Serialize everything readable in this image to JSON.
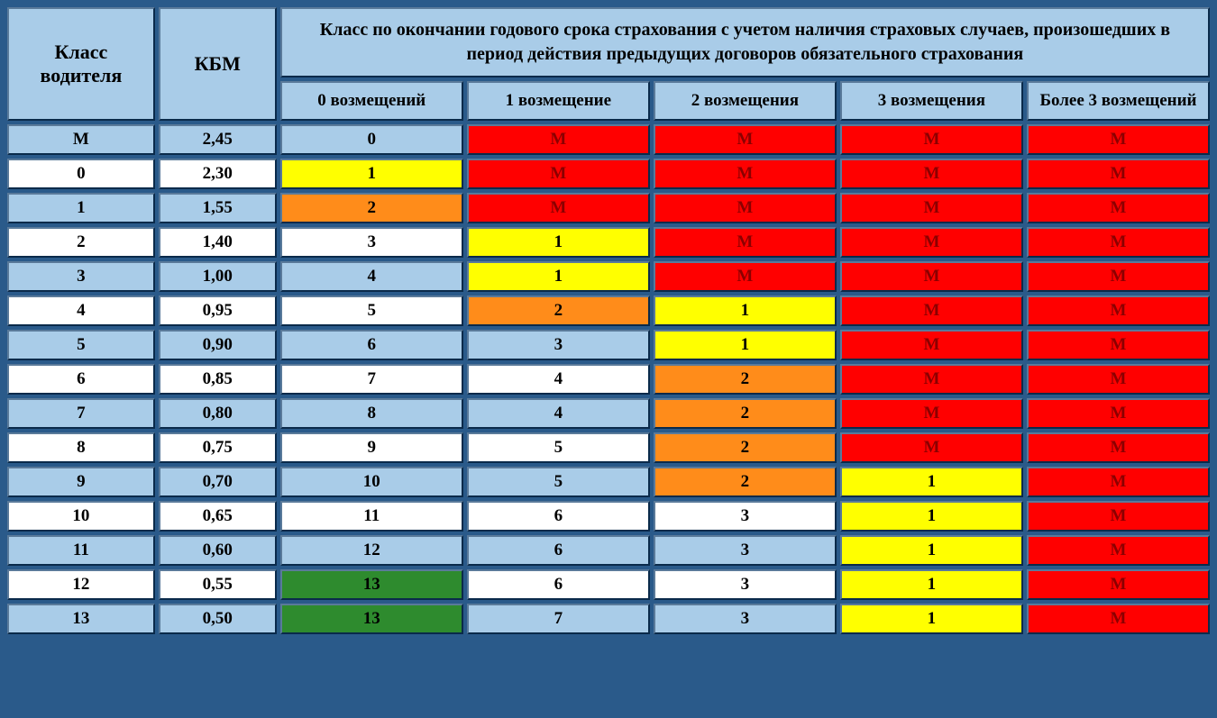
{
  "headers": {
    "driver_class": "Класс водителя",
    "kbm": "КБМ",
    "main": "Класс по окончании годового срока страхования с учетом наличия страховых случаев, произошедших в период действия предыдущих договоров обязательного страхования",
    "sub": [
      "0 возмещений",
      "1 возмещение",
      "2 возмещения",
      "3 возмещения",
      "Более 3 возмещений"
    ]
  },
  "colors": {
    "header_bg": "#a9cce8",
    "blue": "#a9cce8",
    "white": "#ffffff",
    "yellow": "#ffff00",
    "orange": "#ff8c1a",
    "red": "#ff0000",
    "green": "#2e8b2e",
    "red_text": "#8b0000",
    "black_text": "#000000"
  },
  "rows": [
    {
      "class": "М",
      "kbm": "2,45",
      "c0": {
        "v": "0",
        "bg": "blue"
      },
      "c1": {
        "v": "М",
        "bg": "red",
        "fg": "red_text"
      },
      "c2": {
        "v": "М",
        "bg": "red",
        "fg": "red_text"
      },
      "c3": {
        "v": "М",
        "bg": "red",
        "fg": "red_text"
      },
      "c4": {
        "v": "М",
        "bg": "red",
        "fg": "red_text"
      },
      "row_bg": "blue"
    },
    {
      "class": "0",
      "kbm": "2,30",
      "c0": {
        "v": "1",
        "bg": "yellow"
      },
      "c1": {
        "v": "М",
        "bg": "red",
        "fg": "red_text"
      },
      "c2": {
        "v": "М",
        "bg": "red",
        "fg": "red_text"
      },
      "c3": {
        "v": "М",
        "bg": "red",
        "fg": "red_text"
      },
      "c4": {
        "v": "М",
        "bg": "red",
        "fg": "red_text"
      },
      "row_bg": "white"
    },
    {
      "class": "1",
      "kbm": "1,55",
      "c0": {
        "v": "2",
        "bg": "orange"
      },
      "c1": {
        "v": "М",
        "bg": "red",
        "fg": "red_text"
      },
      "c2": {
        "v": "М",
        "bg": "red",
        "fg": "red_text"
      },
      "c3": {
        "v": "М",
        "bg": "red",
        "fg": "red_text"
      },
      "c4": {
        "v": "М",
        "bg": "red",
        "fg": "red_text"
      },
      "row_bg": "blue"
    },
    {
      "class": "2",
      "kbm": "1,40",
      "c0": {
        "v": "3",
        "bg": "white"
      },
      "c1": {
        "v": "1",
        "bg": "yellow"
      },
      "c2": {
        "v": "М",
        "bg": "red",
        "fg": "red_text"
      },
      "c3": {
        "v": "М",
        "bg": "red",
        "fg": "red_text"
      },
      "c4": {
        "v": "М",
        "bg": "red",
        "fg": "red_text"
      },
      "row_bg": "white"
    },
    {
      "class": "3",
      "kbm": "1,00",
      "c0": {
        "v": "4",
        "bg": "blue"
      },
      "c1": {
        "v": "1",
        "bg": "yellow"
      },
      "c2": {
        "v": "М",
        "bg": "red",
        "fg": "red_text"
      },
      "c3": {
        "v": "М",
        "bg": "red",
        "fg": "red_text"
      },
      "c4": {
        "v": "М",
        "bg": "red",
        "fg": "red_text"
      },
      "row_bg": "blue"
    },
    {
      "class": "4",
      "kbm": "0,95",
      "c0": {
        "v": "5",
        "bg": "white"
      },
      "c1": {
        "v": "2",
        "bg": "orange"
      },
      "c2": {
        "v": "1",
        "bg": "yellow"
      },
      "c3": {
        "v": "М",
        "bg": "red",
        "fg": "red_text"
      },
      "c4": {
        "v": "М",
        "bg": "red",
        "fg": "red_text"
      },
      "row_bg": "white"
    },
    {
      "class": "5",
      "kbm": "0,90",
      "c0": {
        "v": "6",
        "bg": "blue"
      },
      "c1": {
        "v": "3",
        "bg": "blue"
      },
      "c2": {
        "v": "1",
        "bg": "yellow"
      },
      "c3": {
        "v": "М",
        "bg": "red",
        "fg": "red_text"
      },
      "c4": {
        "v": "М",
        "bg": "red",
        "fg": "red_text"
      },
      "row_bg": "blue"
    },
    {
      "class": "6",
      "kbm": "0,85",
      "c0": {
        "v": "7",
        "bg": "white"
      },
      "c1": {
        "v": "4",
        "bg": "white"
      },
      "c2": {
        "v": "2",
        "bg": "orange"
      },
      "c3": {
        "v": "М",
        "bg": "red",
        "fg": "red_text"
      },
      "c4": {
        "v": "М",
        "bg": "red",
        "fg": "red_text"
      },
      "row_bg": "white"
    },
    {
      "class": "7",
      "kbm": "0,80",
      "c0": {
        "v": "8",
        "bg": "blue"
      },
      "c1": {
        "v": "4",
        "bg": "blue"
      },
      "c2": {
        "v": "2",
        "bg": "orange"
      },
      "c3": {
        "v": "М",
        "bg": "red",
        "fg": "red_text"
      },
      "c4": {
        "v": "М",
        "bg": "red",
        "fg": "red_text"
      },
      "row_bg": "blue"
    },
    {
      "class": "8",
      "kbm": "0,75",
      "c0": {
        "v": "9",
        "bg": "white"
      },
      "c1": {
        "v": "5",
        "bg": "white"
      },
      "c2": {
        "v": "2",
        "bg": "orange"
      },
      "c3": {
        "v": "М",
        "bg": "red",
        "fg": "red_text"
      },
      "c4": {
        "v": "М",
        "bg": "red",
        "fg": "red_text"
      },
      "row_bg": "white"
    },
    {
      "class": "9",
      "kbm": "0,70",
      "c0": {
        "v": "10",
        "bg": "blue"
      },
      "c1": {
        "v": "5",
        "bg": "blue"
      },
      "c2": {
        "v": "2",
        "bg": "orange"
      },
      "c3": {
        "v": "1",
        "bg": "yellow"
      },
      "c4": {
        "v": "М",
        "bg": "red",
        "fg": "red_text"
      },
      "row_bg": "blue"
    },
    {
      "class": "10",
      "kbm": "0,65",
      "c0": {
        "v": "11",
        "bg": "white"
      },
      "c1": {
        "v": "6",
        "bg": "white"
      },
      "c2": {
        "v": "3",
        "bg": "white"
      },
      "c3": {
        "v": "1",
        "bg": "yellow"
      },
      "c4": {
        "v": "М",
        "bg": "red",
        "fg": "red_text"
      },
      "row_bg": "white"
    },
    {
      "class": "11",
      "kbm": "0,60",
      "c0": {
        "v": "12",
        "bg": "blue"
      },
      "c1": {
        "v": "6",
        "bg": "blue"
      },
      "c2": {
        "v": "3",
        "bg": "blue"
      },
      "c3": {
        "v": "1",
        "bg": "yellow"
      },
      "c4": {
        "v": "М",
        "bg": "red",
        "fg": "red_text"
      },
      "row_bg": "blue"
    },
    {
      "class": "12",
      "kbm": "0,55",
      "c0": {
        "v": "13",
        "bg": "green"
      },
      "c1": {
        "v": "6",
        "bg": "white"
      },
      "c2": {
        "v": "3",
        "bg": "white"
      },
      "c3": {
        "v": "1",
        "bg": "yellow"
      },
      "c4": {
        "v": "М",
        "bg": "red",
        "fg": "red_text"
      },
      "row_bg": "white"
    },
    {
      "class": "13",
      "kbm": "0,50",
      "c0": {
        "v": "13",
        "bg": "green"
      },
      "c1": {
        "v": "7",
        "bg": "blue"
      },
      "c2": {
        "v": "3",
        "bg": "blue"
      },
      "c3": {
        "v": "1",
        "bg": "yellow"
      },
      "c4": {
        "v": "М",
        "bg": "red",
        "fg": "red_text"
      },
      "row_bg": "blue"
    }
  ]
}
